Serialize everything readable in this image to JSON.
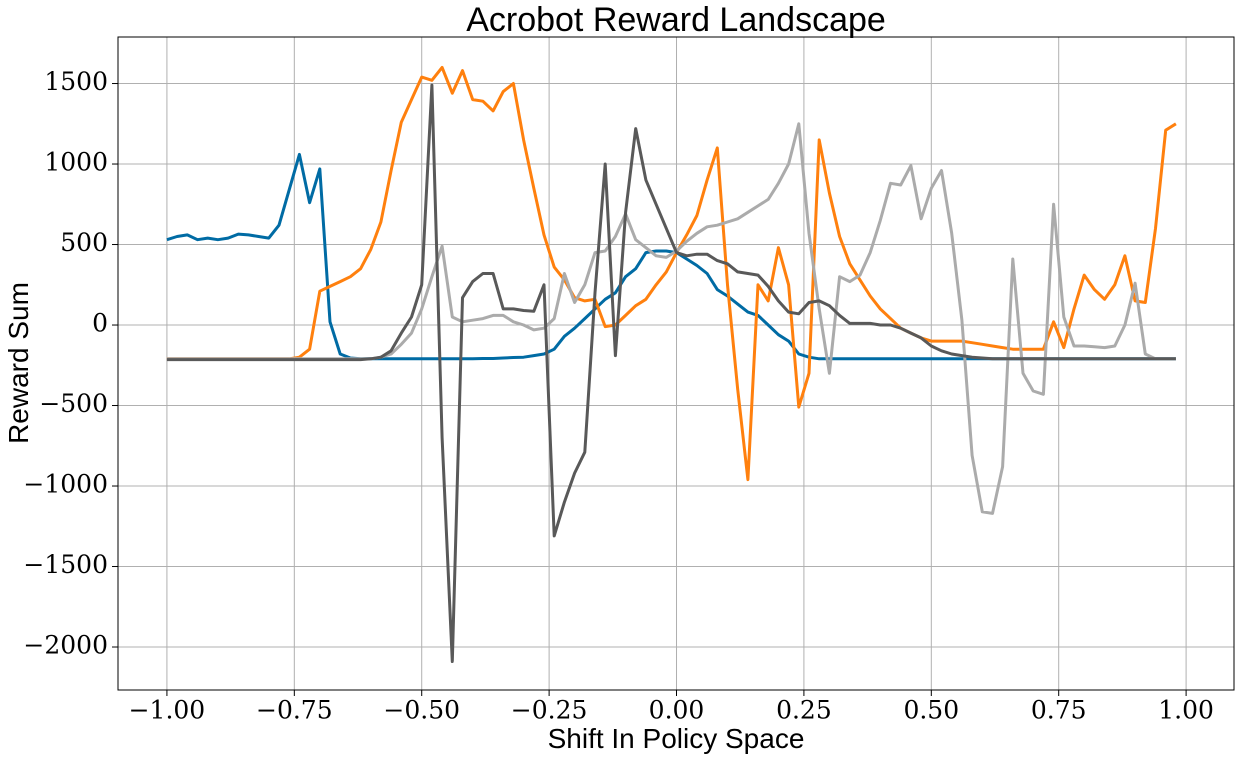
{
  "chart_data": {
    "type": "line",
    "title": "Acrobot Reward Landscape",
    "x_label": "Shift In Policy Space",
    "y_label": "Reward Sum",
    "x": [
      -1,
      -0.98,
      -0.96,
      -0.94,
      -0.92,
      -0.9,
      -0.88,
      -0.86,
      -0.84,
      -0.82,
      -0.8,
      -0.78,
      -0.76,
      -0.74,
      -0.72,
      -0.7,
      -0.68,
      -0.66,
      -0.64,
      -0.62,
      -0.6,
      -0.58,
      -0.56,
      -0.54,
      -0.52,
      -0.5,
      -0.48,
      -0.46,
      -0.44,
      -0.42,
      -0.4,
      -0.38,
      -0.36,
      -0.34,
      -0.32,
      -0.3,
      -0.28,
      -0.26,
      -0.24,
      -0.22,
      -0.2,
      -0.18,
      -0.16,
      -0.14,
      -0.12,
      -0.1,
      -0.08,
      -0.06,
      -0.04,
      -0.02,
      0,
      0.02,
      0.04,
      0.06,
      0.08,
      0.1,
      0.12,
      0.14,
      0.16,
      0.18,
      0.2,
      0.22,
      0.24,
      0.26,
      0.28,
      0.3,
      0.32,
      0.34,
      0.36,
      0.38,
      0.4,
      0.42,
      0.44,
      0.46,
      0.48,
      0.5,
      0.52,
      0.54,
      0.56,
      0.58,
      0.6,
      0.62,
      0.64,
      0.66,
      0.68,
      0.7,
      0.72,
      0.74,
      0.76,
      0.78,
      0.8,
      0.82,
      0.84,
      0.86,
      0.88,
      0.9,
      0.92,
      0.94,
      0.96,
      0.98
    ],
    "series": [
      {
        "color": "#006ba4",
        "values": [
          530,
          550,
          560,
          530,
          540,
          530,
          540,
          565,
          560,
          550,
          540,
          620,
          840,
          1060,
          760,
          970,
          20,
          -180,
          -205,
          -210,
          -210,
          -210,
          -210,
          -210,
          -210,
          -210,
          -210,
          -210,
          -210,
          -210,
          -210,
          -208,
          -208,
          -205,
          -202,
          -200,
          -190,
          -180,
          -150,
          -70,
          -20,
          40,
          100,
          160,
          200,
          300,
          350,
          450,
          460,
          460,
          450,
          410,
          370,
          320,
          220,
          180,
          130,
          80,
          60,
          0,
          -60,
          -100,
          -180,
          -200,
          -210,
          -210,
          -210,
          -210,
          -210,
          -210,
          -210,
          -210,
          -210,
          -210,
          -210,
          -210,
          -210,
          -210,
          -210,
          -210,
          -210,
          -210,
          -210,
          -210,
          -210,
          -210,
          -210,
          -210,
          -210,
          -210,
          -210,
          -210,
          -210,
          -210,
          -210,
          -210,
          -210,
          -210,
          -210,
          -210
        ]
      },
      {
        "color": "#ff800e",
        "values": [
          -210,
          -210,
          -210,
          -210,
          -210,
          -210,
          -210,
          -210,
          -210,
          -210,
          -210,
          -210,
          -210,
          -200,
          -150,
          210,
          240,
          270,
          300,
          350,
          470,
          640,
          960,
          1260,
          1400,
          1540,
          1520,
          1600,
          1440,
          1580,
          1400,
          1390,
          1330,
          1450,
          1500,
          1150,
          850,
          560,
          360,
          280,
          170,
          150,
          160,
          -10,
          0,
          60,
          120,
          160,
          250,
          330,
          450,
          560,
          680,
          900,
          1100,
          250,
          -400,
          -960,
          250,
          150,
          480,
          250,
          -510,
          -300,
          1150,
          820,
          550,
          380,
          280,
          180,
          100,
          40,
          -20,
          -50,
          -80,
          -100,
          -100,
          -100,
          -100,
          -110,
          -120,
          -130,
          -140,
          -150,
          -150,
          -150,
          -150,
          20,
          -140,
          100,
          310,
          220,
          160,
          250,
          430,
          150,
          140,
          600,
          1210,
          1250
        ]
      },
      {
        "color": "#ababab",
        "values": [
          -210,
          -210,
          -210,
          -210,
          -210,
          -210,
          -210,
          -210,
          -210,
          -210,
          -210,
          -210,
          -210,
          -210,
          -210,
          -210,
          -210,
          -210,
          -210,
          -210,
          -210,
          -200,
          -180,
          -120,
          -50,
          100,
          300,
          490,
          50,
          20,
          30,
          40,
          60,
          60,
          20,
          0,
          -30,
          -20,
          40,
          320,
          140,
          250,
          450,
          460,
          550,
          690,
          530,
          480,
          430,
          420,
          460,
          520,
          570,
          610,
          620,
          640,
          660,
          700,
          740,
          780,
          880,
          1000,
          1250,
          570,
          100,
          -300,
          300,
          270,
          310,
          450,
          650,
          880,
          870,
          990,
          660,
          850,
          960,
          570,
          30,
          -810,
          -1160,
          -1170,
          -880,
          410,
          -300,
          -410,
          -430,
          750,
          50,
          -130,
          -130,
          -135,
          -140,
          -130,
          0,
          260,
          -180,
          -210,
          -210,
          -210
        ]
      },
      {
        "color": "#595959",
        "values": [
          -215,
          -215,
          -215,
          -215,
          -215,
          -215,
          -215,
          -215,
          -215,
          -215,
          -215,
          -215,
          -215,
          -215,
          -215,
          -215,
          -215,
          -215,
          -215,
          -215,
          -210,
          -200,
          -160,
          -50,
          50,
          250,
          1490,
          -700,
          -2090,
          170,
          270,
          320,
          320,
          100,
          100,
          90,
          85,
          250,
          -1310,
          -1100,
          -920,
          -790,
          200,
          1000,
          -190,
          700,
          1220,
          900,
          750,
          600,
          450,
          430,
          440,
          440,
          400,
          380,
          330,
          320,
          310,
          240,
          150,
          80,
          70,
          140,
          150,
          120,
          60,
          10,
          10,
          10,
          0,
          0,
          -20,
          -50,
          -80,
          -130,
          -160,
          -180,
          -190,
          -200,
          -205,
          -210,
          -210,
          -210,
          -210,
          -210,
          -210,
          -210,
          -210,
          -210,
          -210,
          -210,
          -210,
          -210,
          -210,
          -210,
          -210,
          -210,
          -210,
          -210
        ]
      }
    ],
    "xlim": [
      -1.096,
      1.094
    ],
    "ylim": [
      -2267,
      1789
    ],
    "xticks": [
      {
        "value": -1,
        "label": "−1.00"
      },
      {
        "value": -0.75,
        "label": "−0.75"
      },
      {
        "value": -0.5,
        "label": "−0.50"
      },
      {
        "value": -0.25,
        "label": "−0.25"
      },
      {
        "value": 0,
        "label": "0.00"
      },
      {
        "value": 0.25,
        "label": "0.25"
      },
      {
        "value": 0.5,
        "label": "0.50"
      },
      {
        "value": 0.75,
        "label": "0.75"
      },
      {
        "value": 1,
        "label": "1.00"
      }
    ],
    "yticks": [
      {
        "value": -2000,
        "label": "−2000"
      },
      {
        "value": -1500,
        "label": "−1500"
      },
      {
        "value": -1000,
        "label": "−1000"
      },
      {
        "value": -500,
        "label": "−500"
      },
      0,
      500,
      1000,
      1500
    ],
    "grid": true
  }
}
